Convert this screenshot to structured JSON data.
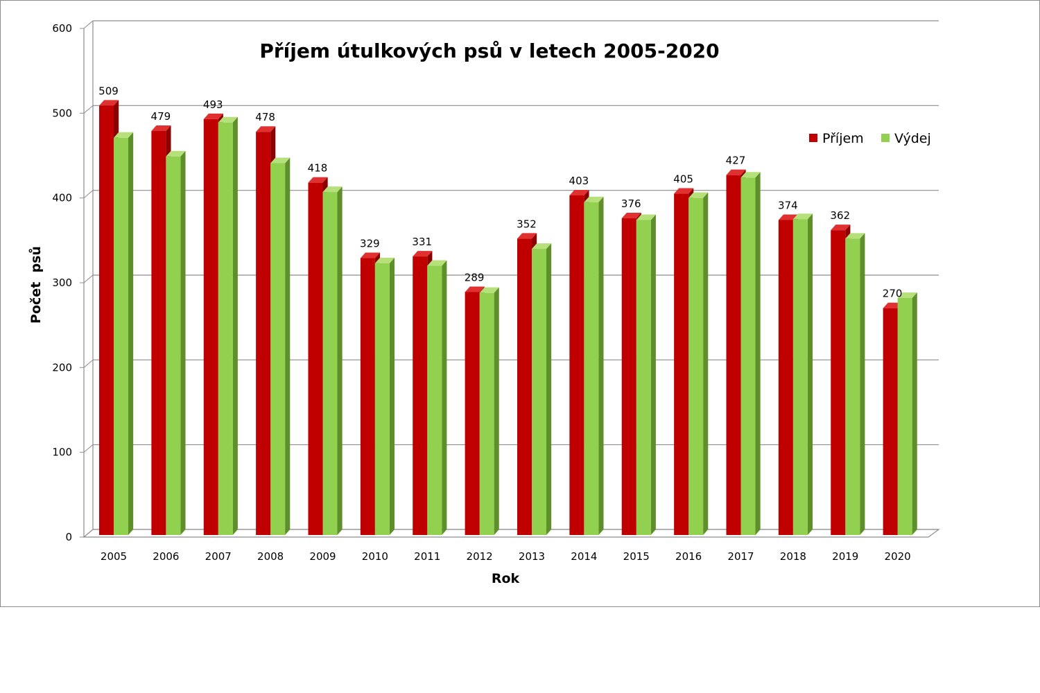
{
  "chart_data": {
    "type": "bar",
    "title": "Příjem útulkových psů v letech 2005-2020",
    "xlabel": "Rok",
    "ylabel": "Počet  psů",
    "ylim": [
      0,
      600
    ],
    "yticks": [
      0,
      100,
      200,
      300,
      400,
      500,
      600
    ],
    "grid": true,
    "legend_position": "top-right",
    "categories": [
      "2005",
      "2006",
      "2007",
      "2008",
      "2009",
      "2010",
      "2011",
      "2012",
      "2013",
      "2014",
      "2015",
      "2016",
      "2017",
      "2018",
      "2019",
      "2020"
    ],
    "series": [
      {
        "name": "Příjem",
        "color": "#c00000",
        "values": [
          509,
          479,
          493,
          478,
          418,
          329,
          331,
          289,
          352,
          403,
          376,
          405,
          427,
          374,
          362,
          270
        ],
        "labels_shown": true
      },
      {
        "name": "Výdej",
        "color": "#92d050",
        "values": [
          471,
          449,
          489,
          441,
          407,
          323,
          320,
          288,
          340,
          395,
          374,
          400,
          424,
          375,
          352,
          282
        ],
        "labels_shown": false
      }
    ]
  }
}
